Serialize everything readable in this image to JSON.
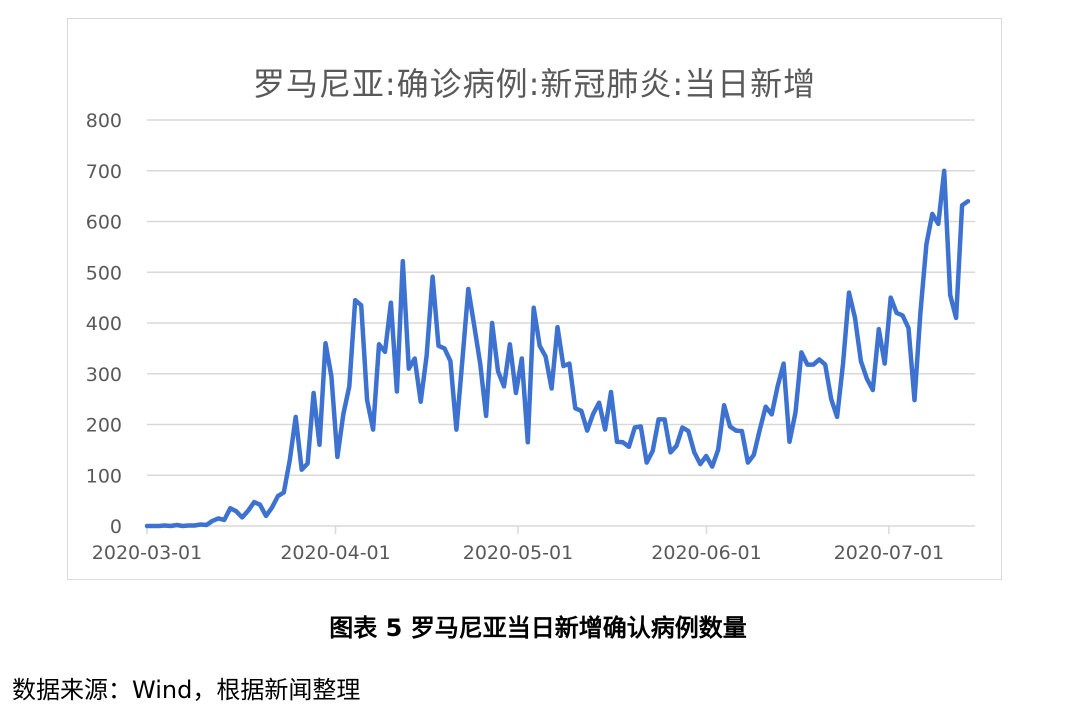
{
  "chart_data": {
    "type": "line",
    "title": "罗马尼亚:确诊病例:新冠肺炎:当日新增",
    "xlabel": "",
    "ylabel": "",
    "ylim": [
      0,
      800
    ],
    "yticks": [
      0,
      100,
      200,
      300,
      400,
      500,
      600,
      700,
      800
    ],
    "xticks": [
      "2020-03-01",
      "2020-04-01",
      "2020-05-01",
      "2020-06-01",
      "2020-07-01"
    ],
    "grid": "horizontal",
    "line_color": "#3d72d1",
    "grid_color": "#d9d9d9",
    "x_start": "2020-03-01",
    "x_end": "2020-07-14",
    "series": [
      {
        "values": [
          0,
          0,
          0,
          1,
          0,
          2,
          0,
          1,
          1,
          3,
          2,
          10,
          15,
          12,
          35,
          29,
          17,
          30,
          47,
          42,
          20,
          36,
          59,
          66,
          130,
          215,
          111,
          123,
          262,
          160,
          360,
          295,
          136,
          220,
          275,
          445,
          435,
          248,
          190,
          358,
          343,
          440,
          265,
          522,
          310,
          330,
          245,
          335,
          491,
          355,
          350,
          325,
          190,
          325,
          467,
          395,
          320,
          217,
          400,
          305,
          275,
          358,
          262,
          330,
          165,
          430,
          355,
          334,
          271,
          392,
          315,
          320,
          232,
          227,
          188,
          221,
          243,
          190,
          264,
          166,
          165,
          156,
          194,
          196,
          125,
          148,
          210,
          210,
          145,
          158,
          194,
          187,
          145,
          122,
          138,
          117,
          150,
          238,
          196,
          188,
          187,
          125,
          140,
          190,
          235,
          220,
          275,
          320,
          166,
          224,
          342,
          318,
          318,
          328,
          318,
          250,
          215,
          321,
          460,
          410,
          325,
          290,
          268,
          388,
          320,
          450,
          420,
          415,
          390,
          248,
          420,
          555,
          615,
          595,
          700,
          455,
          410,
          632,
          640
        ]
      }
    ]
  },
  "caption": "图表 5  罗马尼亚当日新增确认病例数量",
  "source": "数据来源：Wind，根据新闻整理"
}
